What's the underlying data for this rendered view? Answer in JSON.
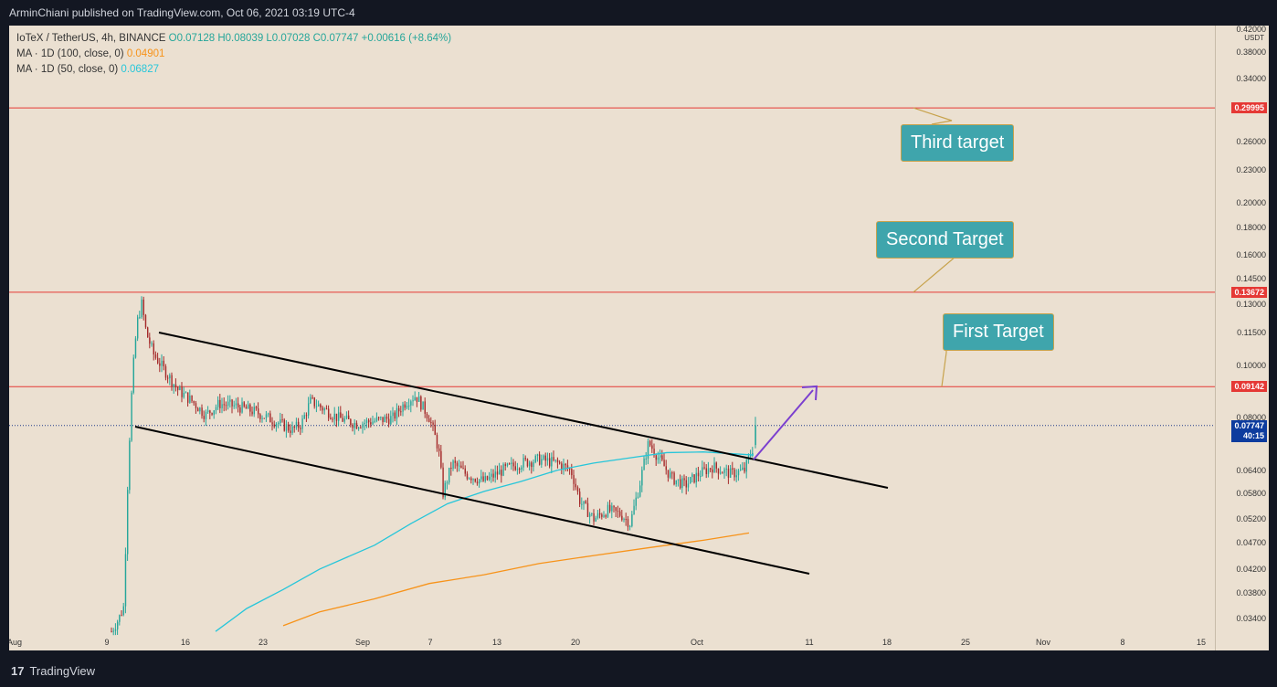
{
  "header": {
    "publisher": "ArminChiani published on TradingView.com, Oct 06, 2021 03:19 UTC-4"
  },
  "legend": {
    "symbol": "IoTeX / TetherUS, 4h, BINANCE",
    "ohlc": "O0.07128 H0.08039 L0.07028 C0.07747 +0.00616 (+8.64%)",
    "ma100_label": "MA · 1D (100, close, 0)",
    "ma100_value": "0.04901",
    "ma50_label": "MA · 1D (50, close, 0)",
    "ma50_value": "0.06827"
  },
  "price_scale": {
    "unit": "USDT",
    "top_label": "0.42000",
    "ticks": [
      "0.38000",
      "0.34000",
      "0.26000",
      "0.23000",
      "0.20000",
      "0.18000",
      "0.16000",
      "0.14500",
      "0.13000",
      "0.11500",
      "0.10000",
      "0.08000",
      "0.06400",
      "0.05800",
      "0.05200",
      "0.04700",
      "0.04200",
      "0.03800",
      "0.03400"
    ]
  },
  "levels": [
    {
      "label": "0.29995",
      "color": "#e53935"
    },
    {
      "label": "0.13672",
      "color": "#e53935"
    },
    {
      "label": "0.09142",
      "color": "#e53935"
    }
  ],
  "current_price": {
    "price": "0.07747",
    "countdown": "40:15"
  },
  "callouts": {
    "third": "Third target",
    "second": "Second Target",
    "first": "First Target"
  },
  "time_axis": [
    "Aug",
    "9",
    "16",
    "23",
    "Sep",
    "7",
    "13",
    "20",
    "Oct",
    "11",
    "18",
    "25",
    "Nov",
    "8",
    "15"
  ],
  "footer": {
    "brand": "TradingView",
    "logo_glyph": "17"
  },
  "colors": {
    "up": "#26a69a",
    "down": "#a52a2a",
    "ma50": "#26c6da",
    "ma100": "#f7931a",
    "resistance": "#e53935",
    "projection": "#7b3fcf"
  },
  "chart_data": {
    "type": "candlestick",
    "title": "IoTeX / TetherUS, 4h, BINANCE",
    "y_scale": "log",
    "ylim": [
      0.0316,
      0.426
    ],
    "x": [
      "Aug",
      "9",
      "16",
      "23",
      "Sep",
      "7",
      "13",
      "20",
      "Oct",
      "11",
      "18",
      "25",
      "Nov",
      "8",
      "15"
    ],
    "series": [
      {
        "name": "MA · 1D (100, close, 0)",
        "last": 0.04901
      },
      {
        "name": "MA · 1D (50, close, 0)",
        "last": 0.06827
      }
    ],
    "horizontal_levels": [
      0.29995,
      0.13672,
      0.09142
    ],
    "last_close": 0.07747,
    "annotations": [
      "Third target",
      "Second Target",
      "First Target"
    ]
  }
}
